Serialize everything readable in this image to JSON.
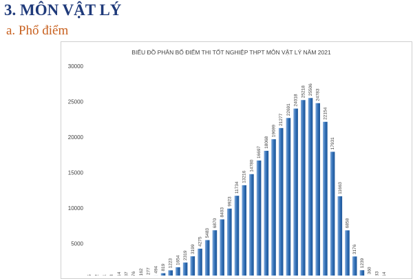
{
  "heading": "3. MÔN VẬT LÝ",
  "subheading": "a. Phổ điểm",
  "colors": {
    "bar": "#2e6db4",
    "bar_highlight": "#8fb6e2",
    "heading": "#1f3a7a",
    "subheading": "#c8601e"
  },
  "chart_data": {
    "type": "bar",
    "title": "BIỂU ĐỒ PHÂN BỐ ĐIỂM THI TỐT NGHIỆP THPT MÔN VẬT LÝ NĂM 2021",
    "xlabel": "",
    "ylabel": "",
    "ylim": [
      0,
      30000
    ],
    "yticks": [
      "30000",
      "25000",
      "20000",
      "15000",
      "10000",
      "5000"
    ],
    "values": [
      5,
      2,
      1,
      3,
      14,
      37,
      76,
      162,
      277,
      494,
      819,
      1223,
      1654,
      2319,
      3199,
      4275,
      5483,
      6870,
      8403,
      9923,
      11734,
      13216,
      14780,
      16697,
      18068,
      19699,
      21277,
      22691,
      24018,
      25218,
      25506,
      24783,
      22154,
      17931,
      11663,
      6858,
      3176,
      1239,
      360,
      83,
      14
    ],
    "labels": [
      "5",
      "2",
      "1",
      "3",
      "14",
      "37",
      "76",
      "162",
      "277",
      "494",
      "819",
      "1223",
      "1654",
      "2319",
      "3199",
      "4275",
      "5483",
      "6870",
      "8403",
      "9923",
      "11734",
      "13216",
      "14780",
      "16697",
      "18068",
      "19699",
      "21277",
      "22691",
      "24018",
      "25218",
      "25506",
      "24783",
      "22154",
      "17931",
      "11663",
      "6858",
      "3176",
      "1239",
      "360",
      "83",
      "14"
    ],
    "grid": false,
    "legend": "none"
  }
}
